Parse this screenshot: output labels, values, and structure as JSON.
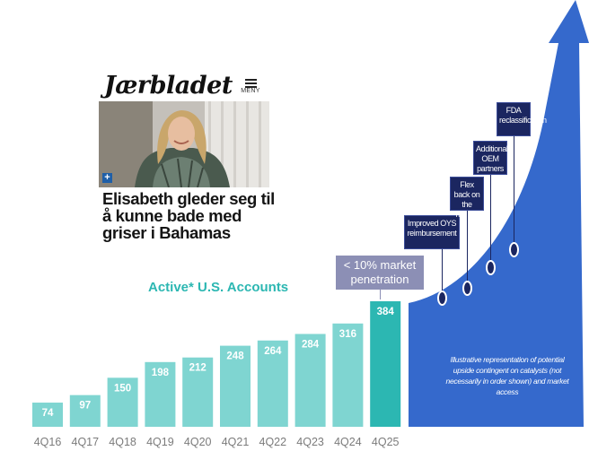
{
  "article": {
    "masthead": "Jærbladet",
    "menu_label": "MENY",
    "plus_symbol": "+",
    "headline": "Elisabeth gleder seg til å kunne bade med griser i Bahamas"
  },
  "chart_data": {
    "type": "bar",
    "title": "Active* U.S. Accounts",
    "categories": [
      "4Q16",
      "4Q17",
      "4Q18",
      "4Q19",
      "4Q20",
      "4Q21",
      "4Q22",
      "4Q23",
      "4Q24",
      "4Q25"
    ],
    "values": [
      74,
      97,
      150,
      198,
      212,
      248,
      264,
      284,
      316,
      384
    ],
    "ylim": [
      0,
      400
    ],
    "bar_color": "#7fd5d1",
    "highlight_color": "#2cb7b2",
    "highlight_index": 9,
    "callout": "< 10% market penetration",
    "grid": false,
    "legend": "none"
  },
  "upside": {
    "arrow_color": "#3569cc",
    "note": "Illustrative representation of potential upside contingent on catalysts (not necessarily in order shown) and market access",
    "catalysts": [
      "Improved OYS reimbursement",
      "Flex back on the market",
      "Additional OEM partners",
      "FDA reclassification"
    ]
  }
}
